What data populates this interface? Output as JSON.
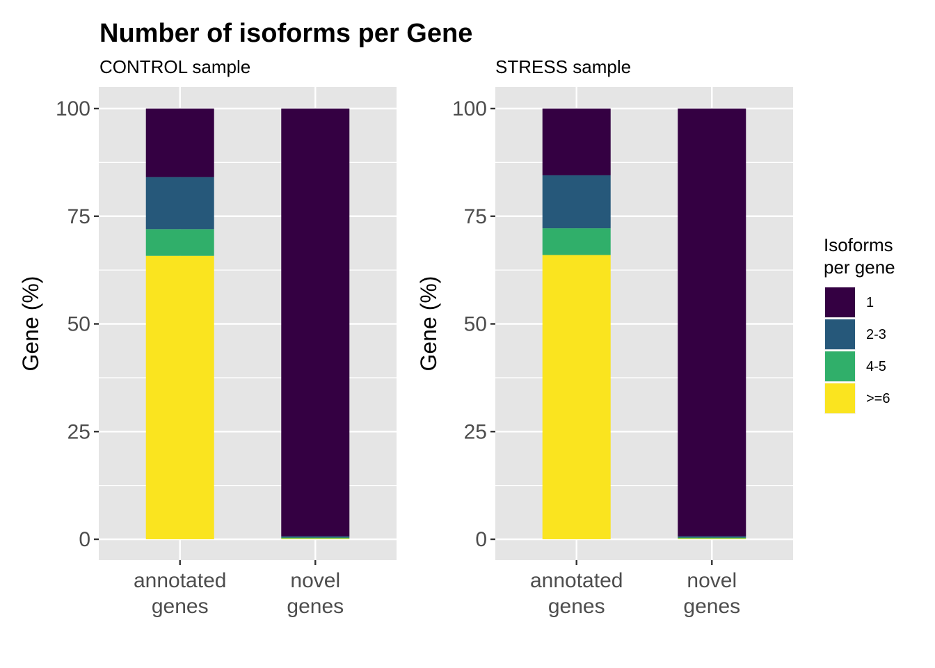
{
  "title": "Number of isoforms per Gene",
  "colors": {
    "1": "#340042",
    "2-3": "#26587a",
    "4-5": "#30af6a",
    ">=6": "#fae41f",
    "panel_bg": "#e5e5e5",
    "grid": "#ffffff"
  },
  "legend": {
    "title_line1": "Isoforms",
    "title_line2": "per gene",
    "entries": [
      "1",
      "2-3",
      "4-5",
      ">=6"
    ]
  },
  "chart_data": [
    {
      "type": "bar",
      "stacked": true,
      "subtitle": "CONTROL sample",
      "ylabel": "Gene (%)",
      "xlabel": "",
      "ylim": [
        0,
        100
      ],
      "yticks": [
        "0",
        "25",
        "50",
        "75",
        "100"
      ],
      "categories": [
        {
          "line1": "annotated",
          "line2": "genes"
        },
        {
          "line1": "novel",
          "line2": "genes"
        }
      ],
      "series": [
        {
          "name": ">=6",
          "values": [
            65.8,
            0.2
          ]
        },
        {
          "name": "4-5",
          "values": [
            6.2,
            0.2
          ]
        },
        {
          "name": "2-3",
          "values": [
            12.1,
            0.3
          ]
        },
        {
          "name": "1",
          "values": [
            15.9,
            99.3
          ]
        }
      ]
    },
    {
      "type": "bar",
      "stacked": true,
      "subtitle": "STRESS sample",
      "ylabel": "Gene (%)",
      "xlabel": "",
      "ylim": [
        0,
        100
      ],
      "yticks": [
        "0",
        "25",
        "50",
        "75",
        "100"
      ],
      "categories": [
        {
          "line1": "annotated",
          "line2": "genes"
        },
        {
          "line1": "novel",
          "line2": "genes"
        }
      ],
      "series": [
        {
          "name": ">=6",
          "values": [
            66.0,
            0.2
          ]
        },
        {
          "name": "4-5",
          "values": [
            6.2,
            0.2
          ]
        },
        {
          "name": "2-3",
          "values": [
            12.3,
            0.3
          ]
        },
        {
          "name": "1",
          "values": [
            15.5,
            99.3
          ]
        }
      ]
    }
  ]
}
